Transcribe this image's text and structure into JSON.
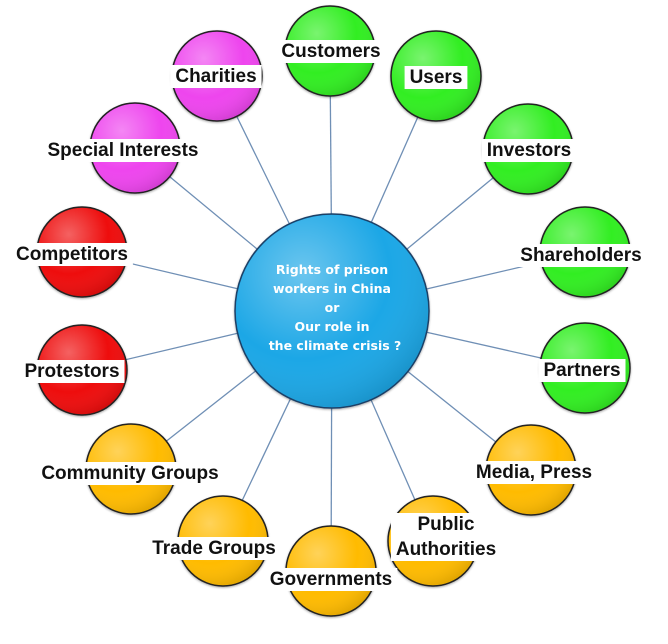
{
  "center": {
    "lines": [
      "Rights of prison",
      "workers in China",
      "or",
      "Our role in",
      "the climate crisis ?"
    ],
    "color": "#1aa7e6"
  },
  "colors": {
    "green": "#33ee22",
    "magenta": "#ee44ee",
    "red": "#ee1111",
    "orange": "#ffbb00",
    "connector": "#6f8fb5"
  },
  "nodes": [
    {
      "id": "customers",
      "lines": [
        "Customers"
      ],
      "color": "green"
    },
    {
      "id": "users",
      "lines": [
        "Users"
      ],
      "color": "green"
    },
    {
      "id": "investors",
      "lines": [
        "Investors"
      ],
      "color": "green"
    },
    {
      "id": "shareholders",
      "lines": [
        "Shareholders"
      ],
      "color": "green"
    },
    {
      "id": "partners",
      "lines": [
        "Partners"
      ],
      "color": "green"
    },
    {
      "id": "media-press",
      "lines": [
        "Media, Press"
      ],
      "color": "orange"
    },
    {
      "id": "public-authorities",
      "lines": [
        "Public",
        "Authorities"
      ],
      "color": "orange"
    },
    {
      "id": "governments",
      "lines": [
        "Governments"
      ],
      "color": "orange"
    },
    {
      "id": "trade-groups",
      "lines": [
        "Trade Groups"
      ],
      "color": "orange"
    },
    {
      "id": "community-groups",
      "lines": [
        "Community Groups"
      ],
      "color": "orange"
    },
    {
      "id": "protestors",
      "lines": [
        "Protestors"
      ],
      "color": "red"
    },
    {
      "id": "competitors",
      "lines": [
        "Competitors"
      ],
      "color": "red"
    },
    {
      "id": "special-interests",
      "lines": [
        "Special Interests"
      ],
      "color": "magenta"
    },
    {
      "id": "charities",
      "lines": [
        "Charities"
      ],
      "color": "magenta"
    }
  ]
}
